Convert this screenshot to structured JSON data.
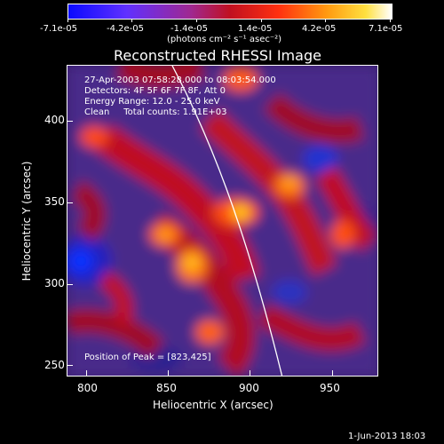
{
  "colorbar": {
    "tick_labels": [
      "-7.1e-05",
      "-4.2e-05",
      "-1.4e-05",
      "1.4e-05",
      "4.2e-05",
      "7.1e-05"
    ],
    "units": "(photons cm⁻² s⁻¹ asec⁻²)",
    "colors": [
      "#1a1aff",
      "#7a2fff",
      "#c23a7a",
      "#e02020",
      "#ff7a10",
      "#ffd020",
      "#ffffff"
    ]
  },
  "image": {
    "title": "Reconstructed RHESSI Image",
    "info_lines": [
      "27-Apr-2003 07:58:28.000 to 08:03:54.000",
      "Detectors: 4F 5F 6F 7F 8F, Att 0",
      "Energy Range: 12.0 - 25.0 keV",
      "Clean     Total counts: 1.91E+03"
    ],
    "peak_label": "Position of Peak = [823,425]",
    "x_axis_label": "Heliocentric X (arcsec)",
    "y_axis_label": "Heliocentric Y (arcsec)",
    "x_ticks": [
      "800",
      "850",
      "900",
      "950"
    ],
    "y_ticks": [
      "250",
      "300",
      "350",
      "400"
    ],
    "footer_date": "1-Jun-2013 18:03"
  }
}
